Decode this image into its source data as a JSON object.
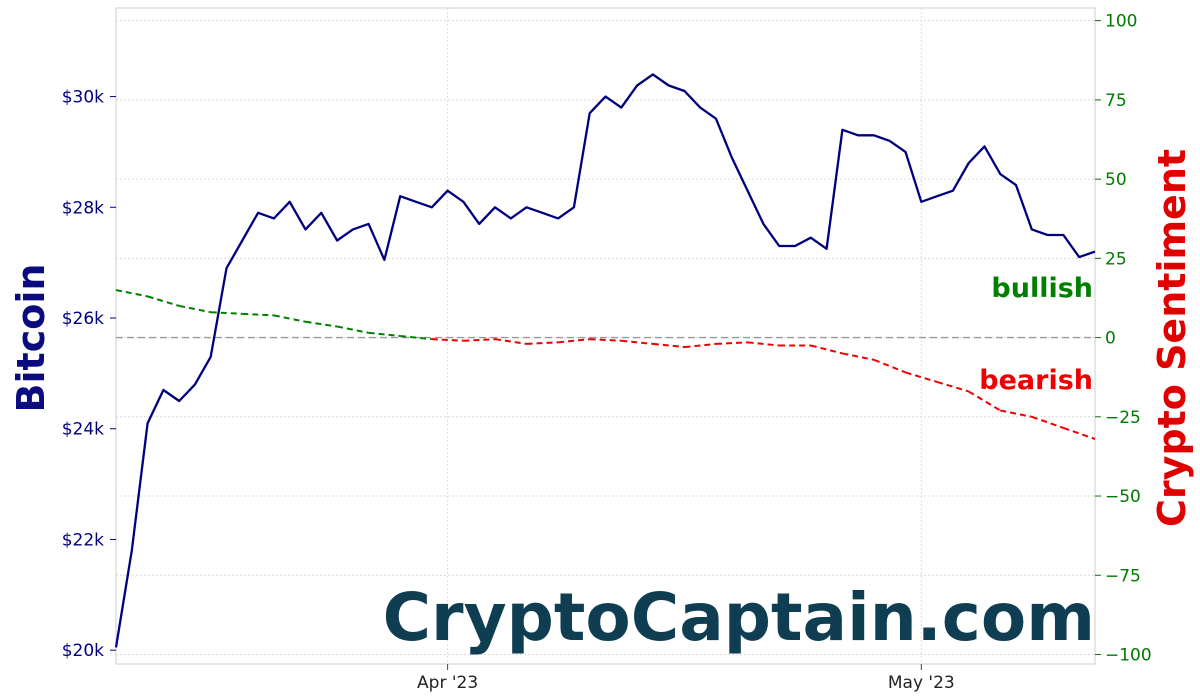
{
  "chart_data": {
    "type": "line",
    "x_axis": {
      "start": "2023-03-11",
      "end": "2023-05-12",
      "tick_dates": [
        "2023-04-01",
        "2023-05-01"
      ],
      "tick_labels": [
        "Apr '23",
        "May '23"
      ]
    },
    "y_left": {
      "label": "Bitcoin",
      "min": 19750,
      "max": 31600,
      "ticks": [
        20000,
        22000,
        24000,
        26000,
        28000,
        30000
      ],
      "tick_labels": [
        "$20k",
        "$22k",
        "$24k",
        "$26k",
        "$28k",
        "$30k"
      ],
      "color": "#00007f"
    },
    "y_right": {
      "label": "Crypto Sentiment",
      "min": -103,
      "max": 104,
      "ticks": [
        100,
        75,
        50,
        25,
        0,
        -25,
        -50,
        -75,
        -100
      ],
      "tick_labels": [
        "100",
        "75",
        "50",
        "25",
        "0",
        "−25",
        "−50",
        "−75",
        "−100"
      ],
      "color": "#007a00"
    },
    "grid": true,
    "series": [
      {
        "axis": "left",
        "color": "#00007f",
        "points": [
          [
            "2023-03-11",
            20050
          ],
          [
            "2023-03-12",
            21800
          ],
          [
            "2023-03-13",
            24100
          ],
          [
            "2023-03-14",
            24700
          ],
          [
            "2023-03-15",
            24500
          ],
          [
            "2023-03-16",
            24800
          ],
          [
            "2023-03-17",
            25300
          ],
          [
            "2023-03-18",
            26900
          ],
          [
            "2023-03-19",
            27400
          ],
          [
            "2023-03-20",
            27900
          ],
          [
            "2023-03-21",
            27800
          ],
          [
            "2023-03-22",
            28100
          ],
          [
            "2023-03-23",
            27600
          ],
          [
            "2023-03-24",
            27900
          ],
          [
            "2023-03-25",
            27400
          ],
          [
            "2023-03-26",
            27600
          ],
          [
            "2023-03-27",
            27700
          ],
          [
            "2023-03-28",
            27050
          ],
          [
            "2023-03-29",
            28200
          ],
          [
            "2023-03-30",
            28100
          ],
          [
            "2023-03-31",
            28000
          ],
          [
            "2023-04-01",
            28300
          ],
          [
            "2023-04-02",
            28100
          ],
          [
            "2023-04-03",
            27700
          ],
          [
            "2023-04-04",
            28000
          ],
          [
            "2023-04-05",
            27800
          ],
          [
            "2023-04-06",
            28000
          ],
          [
            "2023-04-07",
            27900
          ],
          [
            "2023-04-08",
            27800
          ],
          [
            "2023-04-09",
            28000
          ],
          [
            "2023-04-10",
            29700
          ],
          [
            "2023-04-11",
            30000
          ],
          [
            "2023-04-12",
            29800
          ],
          [
            "2023-04-13",
            30200
          ],
          [
            "2023-04-14",
            30400
          ],
          [
            "2023-04-15",
            30200
          ],
          [
            "2023-04-16",
            30100
          ],
          [
            "2023-04-17",
            29800
          ],
          [
            "2023-04-18",
            29600
          ],
          [
            "2023-04-19",
            28900
          ],
          [
            "2023-04-20",
            28300
          ],
          [
            "2023-04-21",
            27700
          ],
          [
            "2023-04-22",
            27300
          ],
          [
            "2023-04-23",
            27300
          ],
          [
            "2023-04-24",
            27450
          ],
          [
            "2023-04-25",
            27250
          ],
          [
            "2023-04-26",
            29400
          ],
          [
            "2023-04-27",
            29300
          ],
          [
            "2023-04-28",
            29300
          ],
          [
            "2023-04-29",
            29200
          ],
          [
            "2023-04-30",
            29000
          ],
          [
            "2023-05-01",
            28100
          ],
          [
            "2023-05-02",
            28200
          ],
          [
            "2023-05-03",
            28300
          ],
          [
            "2023-05-04",
            28800
          ],
          [
            "2023-05-05",
            29100
          ],
          [
            "2023-05-06",
            28600
          ],
          [
            "2023-05-07",
            28400
          ],
          [
            "2023-05-08",
            27600
          ],
          [
            "2023-05-09",
            27500
          ],
          [
            "2023-05-10",
            27500
          ],
          [
            "2023-05-11",
            27100
          ],
          [
            "2023-05-12",
            27200
          ]
        ]
      },
      {
        "axis": "right",
        "style": "dashed",
        "color_positive": "#008000",
        "color_negative": "#ee0000",
        "points": [
          [
            "2023-03-11",
            15
          ],
          [
            "2023-03-13",
            13
          ],
          [
            "2023-03-15",
            10
          ],
          [
            "2023-03-17",
            8
          ],
          [
            "2023-03-19",
            7.5
          ],
          [
            "2023-03-21",
            7
          ],
          [
            "2023-03-23",
            5
          ],
          [
            "2023-03-25",
            3.5
          ],
          [
            "2023-03-27",
            1.5
          ],
          [
            "2023-03-29",
            0.5
          ],
          [
            "2023-03-31",
            -0.5
          ],
          [
            "2023-04-02",
            -1
          ],
          [
            "2023-04-04",
            -0.5
          ],
          [
            "2023-04-06",
            -2
          ],
          [
            "2023-04-08",
            -1.5
          ],
          [
            "2023-04-10",
            -0.5
          ],
          [
            "2023-04-12",
            -1
          ],
          [
            "2023-04-14",
            -2
          ],
          [
            "2023-04-16",
            -3
          ],
          [
            "2023-04-18",
            -2
          ],
          [
            "2023-04-20",
            -1.5
          ],
          [
            "2023-04-22",
            -2.5
          ],
          [
            "2023-04-24",
            -2.5
          ],
          [
            "2023-04-26",
            -5
          ],
          [
            "2023-04-28",
            -7
          ],
          [
            "2023-04-30",
            -11
          ],
          [
            "2023-05-02",
            -14
          ],
          [
            "2023-05-04",
            -17
          ],
          [
            "2023-05-06",
            -23
          ],
          [
            "2023-05-08",
            -25
          ],
          [
            "2023-05-10",
            -28.5
          ],
          [
            "2023-05-12",
            -32
          ]
        ]
      }
    ],
    "zero_line": 0,
    "annotations": [
      {
        "text": "bullish",
        "color": "#008000"
      },
      {
        "text": "bearish",
        "color": "#ee0000"
      }
    ]
  },
  "watermark": "CryptoCaptain.com"
}
